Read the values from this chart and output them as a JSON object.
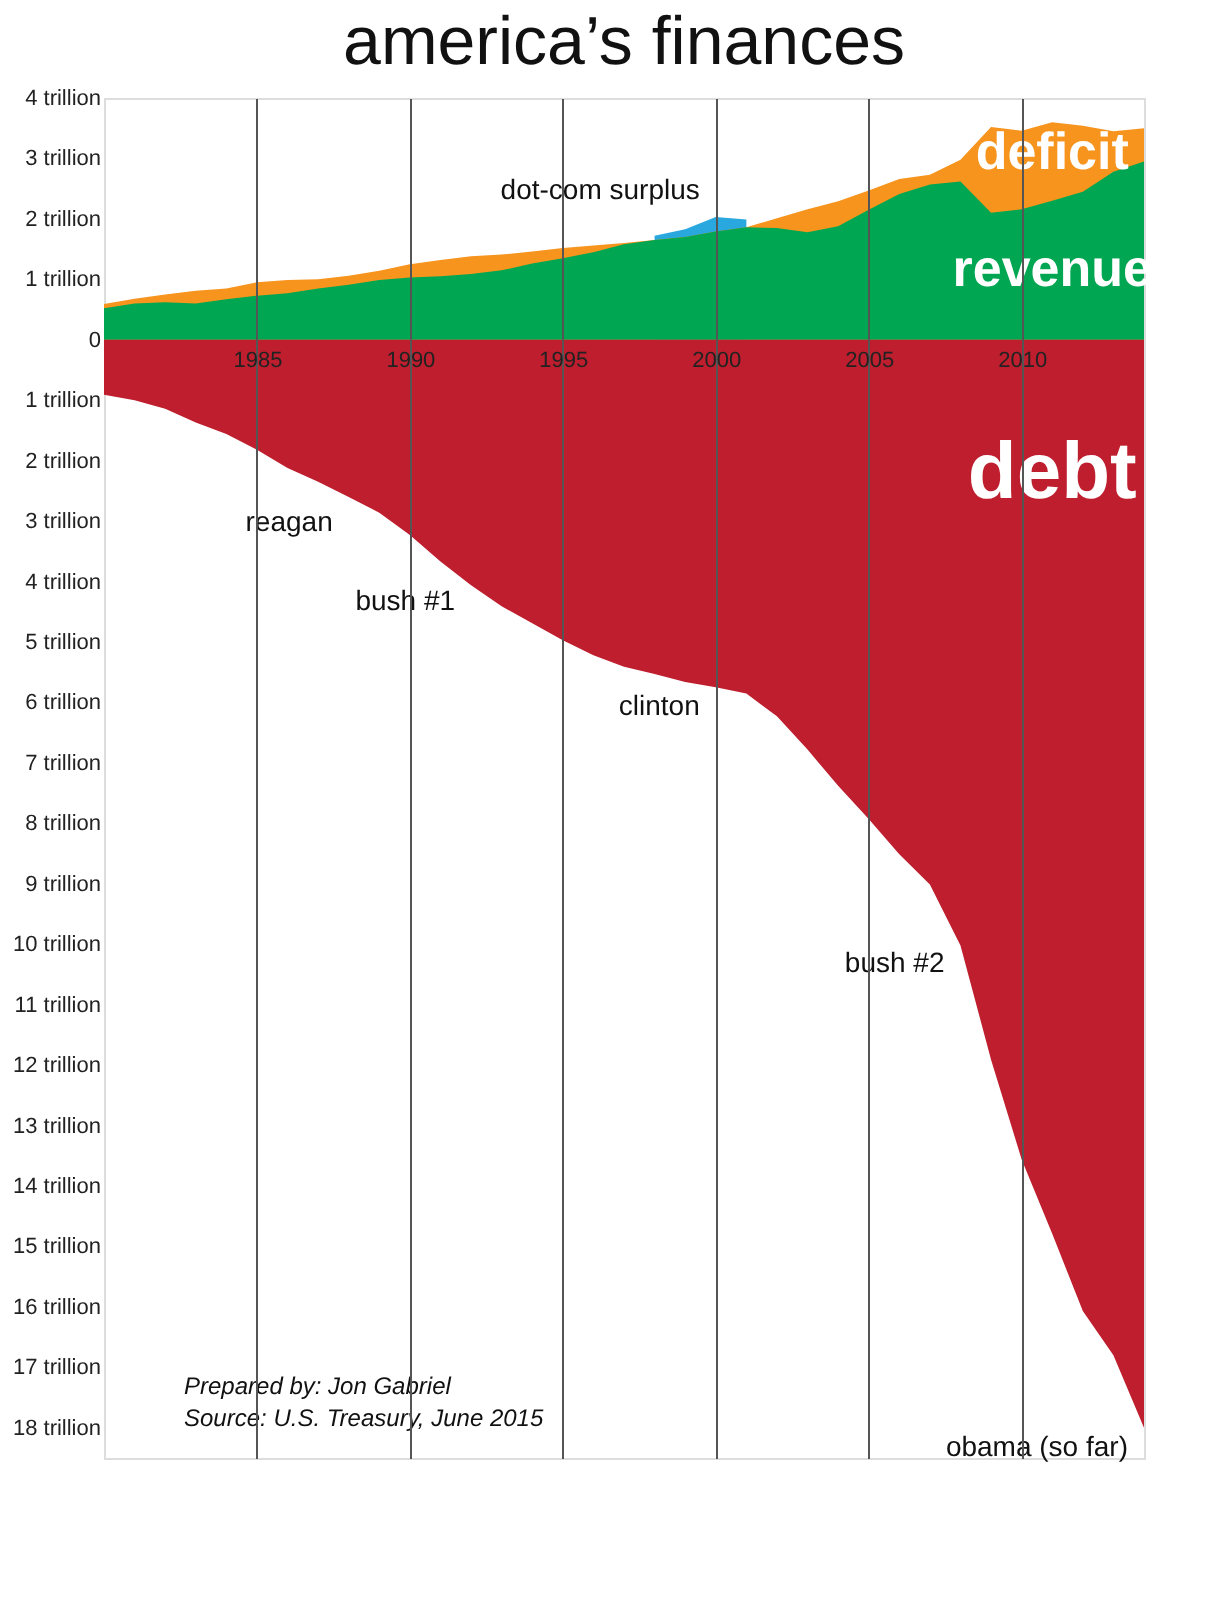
{
  "chart_data": {
    "type": "area",
    "title": "america’s finances",
    "x": [
      1980,
      1981,
      1982,
      1983,
      1984,
      1985,
      1986,
      1987,
      1988,
      1989,
      1990,
      1991,
      1992,
      1993,
      1994,
      1995,
      1996,
      1997,
      1998,
      1999,
      2000,
      2001,
      2002,
      2003,
      2004,
      2005,
      2006,
      2007,
      2008,
      2009,
      2010,
      2011,
      2012,
      2013,
      2014
    ],
    "series": [
      {
        "color": "#29a8e0",
        "x": [
          1998,
          1999,
          2000,
          2001
        ],
        "values": [
          1.72,
          1.83,
          2.03,
          1.99
        ]
      },
      {
        "name": "deficit",
        "color": "#f7941d",
        "values": [
          0.59,
          0.68,
          0.75,
          0.81,
          0.85,
          0.95,
          0.99,
          1.0,
          1.06,
          1.14,
          1.25,
          1.32,
          1.38,
          1.41,
          1.46,
          1.52,
          1.56,
          1.6,
          1.65,
          1.7,
          1.79,
          1.86,
          2.01,
          2.16,
          2.29,
          2.47,
          2.66,
          2.73,
          2.98,
          3.52,
          3.46,
          3.6,
          3.54,
          3.45,
          3.5
        ]
      },
      {
        "name": "revenue",
        "color": "#00a651",
        "values": [
          0.52,
          0.6,
          0.62,
          0.6,
          0.67,
          0.73,
          0.77,
          0.85,
          0.91,
          0.99,
          1.03,
          1.05,
          1.09,
          1.15,
          1.26,
          1.35,
          1.45,
          1.58,
          1.65,
          1.7,
          1.79,
          1.86,
          1.85,
          1.78,
          1.88,
          2.15,
          2.41,
          2.57,
          2.62,
          2.1,
          2.16,
          2.3,
          2.45,
          2.78,
          2.95
        ]
      },
      {
        "name": "debt",
        "color": "#be1e2d",
        "values": [
          -0.91,
          -1.0,
          -1.14,
          -1.37,
          -1.56,
          -1.82,
          -2.12,
          -2.35,
          -2.6,
          -2.86,
          -3.23,
          -3.67,
          -4.06,
          -4.41,
          -4.69,
          -4.97,
          -5.22,
          -5.41,
          -5.53,
          -5.66,
          -5.75,
          -5.85,
          -6.23,
          -6.78,
          -7.38,
          -7.93,
          -8.51,
          -9.01,
          -10.02,
          -11.91,
          -13.56,
          -14.79,
          -16.07,
          -16.8,
          -18.0
        ]
      }
    ],
    "xlim": [
      1980,
      2014
    ],
    "xticks": [
      1985,
      1990,
      1995,
      2000,
      2005,
      2010
    ],
    "ylim": [
      -18.5,
      4
    ],
    "yticks": [
      {
        "value": 4,
        "label": "4 trillion"
      },
      {
        "value": 3,
        "label": "3 trillion"
      },
      {
        "value": 2,
        "label": "2 trillion"
      },
      {
        "value": 1,
        "label": "1 trillion"
      },
      0,
      {
        "value": -1,
        "label": "1 trillion"
      },
      {
        "value": -2,
        "label": "2 trillion"
      },
      {
        "value": -3,
        "label": "3 trillion"
      },
      {
        "value": -4,
        "label": "4 trillion"
      },
      {
        "value": -5,
        "label": "5 trillion"
      },
      {
        "value": -6,
        "label": "6 trillion"
      },
      {
        "value": -7,
        "label": "7 trillion"
      },
      {
        "value": -8,
        "label": "8 trillion"
      },
      {
        "value": -9,
        "label": "9 trillion"
      },
      {
        "value": -10,
        "label": "10 trillion"
      },
      {
        "value": -11,
        "label": "11 trillion"
      },
      {
        "value": -12,
        "label": "12 trillion"
      },
      {
        "value": -13,
        "label": "13 trillion"
      },
      {
        "value": -14,
        "label": "14 trillion"
      },
      {
        "value": -15,
        "label": "15 trillion"
      },
      {
        "value": -16,
        "label": "16 trillion"
      },
      {
        "value": -17,
        "label": "17 trillion"
      },
      {
        "value": -18,
        "label": "18 trillion"
      }
    ],
    "grid": "x",
    "annotations": [
      {
        "text": "dot-com surplus",
        "x": 2000,
        "y": 2.0
      },
      {
        "text": "reagan",
        "x": 1988,
        "y": -2.7
      },
      {
        "text": "bush #1",
        "x": 1992,
        "y": -4.0
      },
      {
        "text": "clinton",
        "x": 2000,
        "y": -5.75
      },
      {
        "text": "bush #2",
        "x": 2008,
        "y": -10.0
      },
      {
        "text": "obama (so far)",
        "x": 2014,
        "y": -18.0
      },
      "Prepared by: Jon Gabriel",
      "Source: U.S. Treasury, June 2015"
    ]
  }
}
